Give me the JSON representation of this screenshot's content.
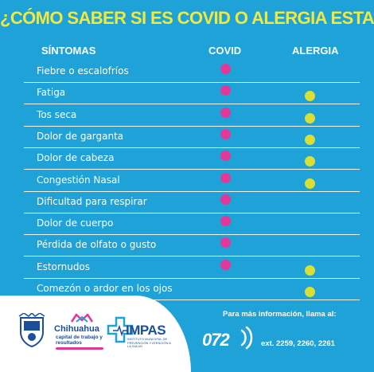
{
  "title": "¿CÓMO SABER SI ES COVID O ALERGIA ESTACIONAL?",
  "headers": {
    "symptoms": "SÍNTOMAS",
    "covid": "COVID",
    "alergia": "ALERGIA"
  },
  "colors": {
    "background": "#1fa2d8",
    "title": "#f2e93a",
    "covid_dot": "#e4379a",
    "alergia_dot": "#d9df34"
  },
  "rows": [
    {
      "label": "Fiebre o escalofríos",
      "covid": true,
      "alergia": false
    },
    {
      "label": "Fatiga",
      "covid": true,
      "alergia": true
    },
    {
      "label": "Tos seca",
      "covid": true,
      "alergia": true
    },
    {
      "label": "Dolor de garganta",
      "covid": true,
      "alergia": true
    },
    {
      "label": "Dolor de cabeza",
      "covid": true,
      "alergia": true
    },
    {
      "label": "Congestión Nasal",
      "covid": true,
      "alergia": true
    },
    {
      "label": "Dificultad para respirar",
      "covid": true,
      "alergia": false
    },
    {
      "label": "Dolor de cuerpo",
      "covid": true,
      "alergia": false
    },
    {
      "label": "Pérdida de olfato o gusto",
      "covid": true,
      "alergia": false
    },
    {
      "label": "Estornudos",
      "covid": true,
      "alergia": true
    },
    {
      "label": "Comezón o ardor en los ojos",
      "covid": false,
      "alergia": true
    }
  ],
  "footer": {
    "chihuahua_title": "Chihuahua",
    "chihuahua_sub": "capital de trabajo y resultados",
    "impas_name": "IMPAS",
    "impas_sub": "INSTITUTO MUNICIPAL DE PREVENCIÓN Y ATENCIÓN A LA SALUD",
    "info_text": "Para más información, llama al:",
    "phone": "072",
    "extensions": "ext. 2259, 2260, 2261"
  }
}
